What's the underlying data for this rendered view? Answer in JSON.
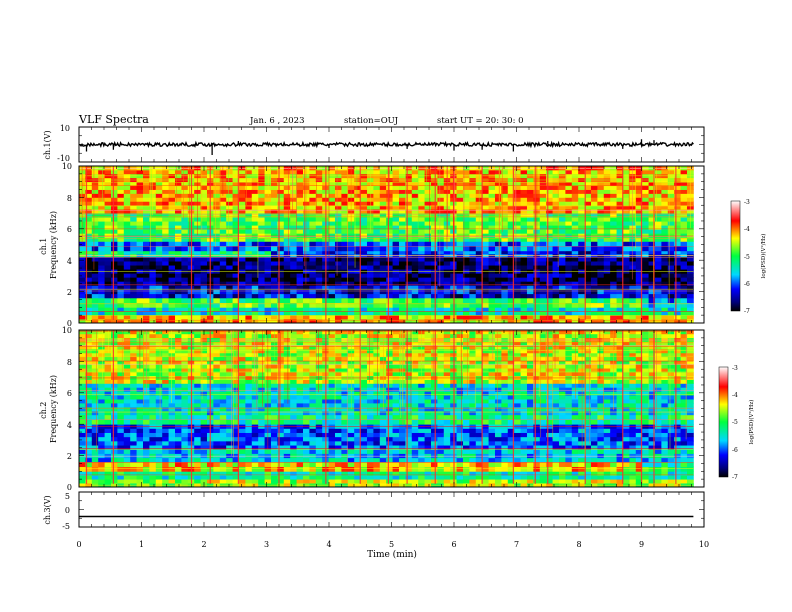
{
  "header": {
    "title": "VLF Spectra",
    "date": "Jan. 6 , 2023",
    "station": "station=OUJ",
    "start": "start UT =  20: 30: 0"
  },
  "chart_data": [
    {
      "type": "line",
      "panel": "ch1-waveform",
      "ylabel": "ch.1(V)",
      "ylim": [
        -10,
        10
      ],
      "y_ticks": [
        "10",
        "-10"
      ],
      "xlim": [
        0,
        10
      ],
      "baseline": 0,
      "noise_amplitude": 2,
      "spikes": [
        {
          "x": 0.12,
          "y": -4
        },
        {
          "x": 0.55,
          "y": -3
        },
        {
          "x": 2.13,
          "y": -6
        },
        {
          "x": 2.55,
          "y": 2
        },
        {
          "x": 4.0,
          "y": -2
        },
        {
          "x": 5.25,
          "y": -2.5
        },
        {
          "x": 6.0,
          "y": -3.5
        },
        {
          "x": 6.45,
          "y": -3
        },
        {
          "x": 6.95,
          "y": -4
        },
        {
          "x": 7.5,
          "y": 2
        },
        {
          "x": 8.7,
          "y": -2.5
        },
        {
          "x": 9.0,
          "y": 3
        },
        {
          "x": 9.2,
          "y": 2.5
        }
      ]
    },
    {
      "type": "heatmap",
      "panel": "ch1-spectrogram",
      "ylabel": "ch.1\nFrequency (kHz)",
      "ylim": [
        0,
        10
      ],
      "xlim": [
        0,
        9.83
      ],
      "y_ticks": [
        "10",
        "8",
        "6",
        "4",
        "2",
        "0"
      ],
      "colorbar": {
        "label": "log(PSD)(V²/Hz)",
        "range": [
          -7,
          -3
        ],
        "ticks": [
          "-3",
          "-4",
          "-5",
          "-6",
          "-7"
        ]
      },
      "bands": [
        {
          "f0": 0,
          "f1": 0.5,
          "level": -4.2,
          "t_end": 9.83
        },
        {
          "f0": 0.5,
          "f1": 1.0,
          "level": -5.4,
          "t_end": 9.83
        },
        {
          "f0": 1.0,
          "f1": 1.6,
          "level": -4.9,
          "t_end": 9.0
        },
        {
          "f0": 1.6,
          "f1": 2.4,
          "level": -6.3,
          "t_end": 9.83
        },
        {
          "f0": 2.4,
          "f1": 4.2,
          "level": -6.7,
          "t_end": 9.83
        },
        {
          "f0": 4.2,
          "f1": 4.6,
          "level": -5.3,
          "t_end": 3.0
        },
        {
          "f0": 4.6,
          "f1": 5.2,
          "level": -6.0,
          "t_end": 9.83
        },
        {
          "f0": 5.2,
          "f1": 7.0,
          "level": -4.9,
          "t_end": 9.83
        },
        {
          "f0": 7.0,
          "f1": 10.0,
          "level": -4.2,
          "t_end": 9.83
        }
      ],
      "tweek_times": [
        0.12,
        0.55,
        1.8,
        2.1,
        2.55,
        3.2,
        3.95,
        4.5,
        4.95,
        5.25,
        5.7,
        6.0,
        6.45,
        6.95,
        7.3,
        7.5,
        8.1,
        8.7,
        9.0,
        9.2,
        9.55
      ]
    },
    {
      "type": "heatmap",
      "panel": "ch2-spectrogram",
      "ylabel": "ch.2\nFrequency (kHz)",
      "ylim": [
        0,
        10
      ],
      "xlim": [
        0,
        9.83
      ],
      "y_ticks": [
        "10",
        "8",
        "6",
        "4",
        "2",
        "0"
      ],
      "colorbar": {
        "label": "log(PSD)(V²/Hz)",
        "range": [
          -7,
          -3
        ],
        "ticks": [
          "-3",
          "-4",
          "-5",
          "-6",
          "-7"
        ]
      },
      "bands": [
        {
          "f0": 0,
          "f1": 0.5,
          "level": -4.6,
          "t_end": 9.83
        },
        {
          "f0": 0.5,
          "f1": 1.0,
          "level": -5.3,
          "t_end": 9.83
        },
        {
          "f0": 1.0,
          "f1": 1.6,
          "level": -4.3,
          "t_end": 9.0
        },
        {
          "f0": 1.6,
          "f1": 2.4,
          "level": -5.6,
          "t_end": 9.83
        },
        {
          "f0": 2.4,
          "f1": 4.0,
          "level": -6.0,
          "t_end": 9.83
        },
        {
          "f0": 4.0,
          "f1": 4.6,
          "level": -5.2,
          "t_end": 9.83
        },
        {
          "f0": 4.6,
          "f1": 6.6,
          "level": -5.5,
          "t_end": 9.83
        },
        {
          "f0": 6.6,
          "f1": 10.0,
          "level": -4.5,
          "t_end": 9.83
        }
      ],
      "tweek_times": [
        0.12,
        0.55,
        1.8,
        2.1,
        2.55,
        3.2,
        3.95,
        4.5,
        4.95,
        5.25,
        5.7,
        6.0,
        6.45,
        6.95,
        7.3,
        7.5,
        8.1,
        8.7,
        9.0,
        9.2,
        9.55
      ]
    },
    {
      "type": "line",
      "panel": "ch3-waveform",
      "ylabel": "ch.3(V)",
      "ylim": [
        -5,
        5
      ],
      "y_ticks": [
        "5",
        "0",
        "-5"
      ],
      "xlim": [
        0,
        10
      ],
      "x": [
        0,
        9.83
      ],
      "y": [
        -2,
        -2
      ]
    }
  ],
  "x_axis": {
    "label": "Time (min)",
    "ticks": [
      "0",
      "1",
      "2",
      "3",
      "4",
      "5",
      "6",
      "7",
      "8",
      "9",
      "10"
    ]
  }
}
